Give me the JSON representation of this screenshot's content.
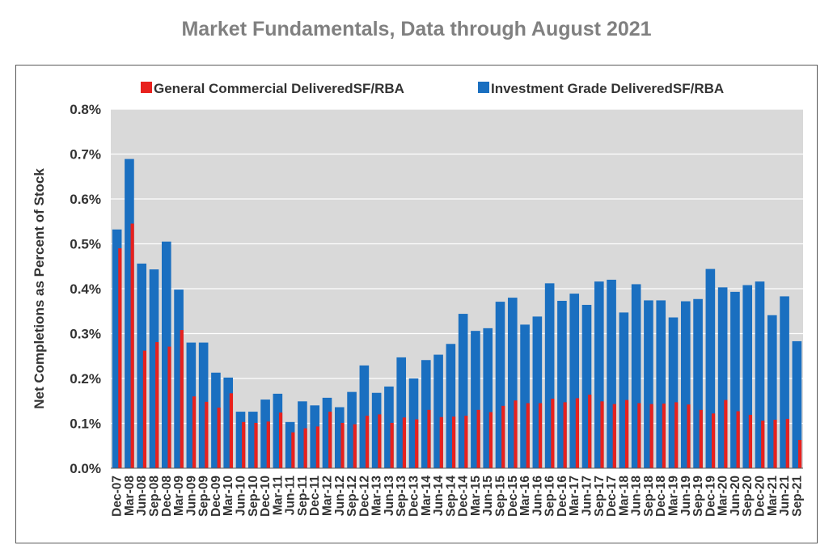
{
  "chart_data": {
    "type": "bar",
    "title": "Market Fundamentals, Data through August 2021",
    "xlabel": "",
    "ylabel": "Net Completions as Percent of Stock",
    "ylim": [
      0,
      0.8
    ],
    "yticks": [
      "0.0%",
      "0.1%",
      "0.2%",
      "0.3%",
      "0.4%",
      "0.5%",
      "0.6%",
      "0.7%",
      "0.8%"
    ],
    "grid": true,
    "legend_position": "top",
    "categories": [
      "Dec-07",
      "Mar-08",
      "Jun-08",
      "Sep-08",
      "Dec-08",
      "Mar-09",
      "Jun-09",
      "Sep-09",
      "Dec-09",
      "Mar-10",
      "Jun-10",
      "Sep-10",
      "Dec-10",
      "Mar-11",
      "Jun-11",
      "Sep-11",
      "Dec-11",
      "Mar-12",
      "Jun-12",
      "Sep-12",
      "Dec-12",
      "Mar-13",
      "Jun-13",
      "Sep-13",
      "Dec-13",
      "Mar-14",
      "Jun-14",
      "Sep-14",
      "Dec-14",
      "Mar-15",
      "Jun-15",
      "Sep-15",
      "Dec-15",
      "Mar-16",
      "Jun-16",
      "Sep-16",
      "Dec-16",
      "Mar-17",
      "Jun-17",
      "Sep-17",
      "Dec-17",
      "Mar-18",
      "Jun-18",
      "Sep-18",
      "Dec-18",
      "Mar-19",
      "Jun-19",
      "Sep-19",
      "Dec-19",
      "Mar-20",
      "Jun-20",
      "Sep-20",
      "Dec-20",
      "Mar-21",
      "Jun-21",
      "Sep-21"
    ],
    "series": [
      {
        "name": "General Commercial DeliveredSF/RBA",
        "color": "#e8211d",
        "values": [
          0.49,
          0.545,
          0.262,
          0.281,
          0.271,
          0.308,
          0.16,
          0.148,
          0.135,
          0.167,
          0.103,
          0.101,
          0.104,
          0.124,
          0.08,
          0.089,
          0.093,
          0.126,
          0.101,
          0.098,
          0.117,
          0.12,
          0.101,
          0.113,
          0.109,
          0.13,
          0.114,
          0.115,
          0.117,
          0.13,
          0.125,
          0.139,
          0.151,
          0.145,
          0.145,
          0.155,
          0.147,
          0.156,
          0.164,
          0.149,
          0.143,
          0.152,
          0.145,
          0.143,
          0.144,
          0.147,
          0.142,
          0.13,
          0.122,
          0.152,
          0.127,
          0.119,
          0.106,
          0.108,
          0.11,
          0.063
        ]
      },
      {
        "name": "Investment Grade DeliveredSF/RBA",
        "color": "#1a6fc0",
        "values": [
          0.532,
          0.689,
          0.456,
          0.443,
          0.505,
          0.398,
          0.28,
          0.28,
          0.213,
          0.202,
          0.126,
          0.126,
          0.153,
          0.166,
          0.103,
          0.149,
          0.14,
          0.157,
          0.136,
          0.17,
          0.229,
          0.168,
          0.182,
          0.247,
          0.2,
          0.241,
          0.253,
          0.277,
          0.344,
          0.306,
          0.312,
          0.371,
          0.38,
          0.32,
          0.338,
          0.412,
          0.373,
          0.389,
          0.364,
          0.416,
          0.42,
          0.347,
          0.41,
          0.374,
          0.374,
          0.336,
          0.372,
          0.377,
          0.444,
          0.403,
          0.393,
          0.408,
          0.416,
          0.341,
          0.383,
          0.283
        ]
      }
    ]
  }
}
